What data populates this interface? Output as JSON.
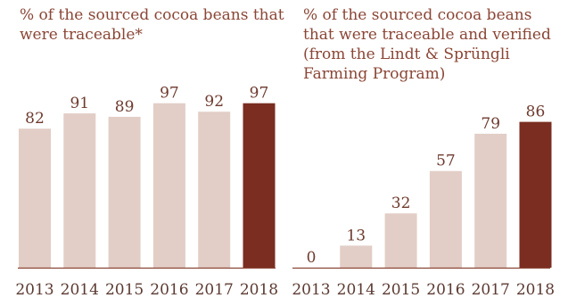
{
  "chart_data": [
    {
      "type": "bar",
      "title": "% of the sourced cocoa beans that were traceable*",
      "categories": [
        "2013",
        "2014",
        "2015",
        "2016",
        "2017",
        "2018"
      ],
      "values": [
        82,
        91,
        89,
        97,
        92,
        97
      ],
      "ylim": [
        0,
        100
      ],
      "grid": false
    },
    {
      "type": "bar",
      "title": "% of the sourced cocoa beans that were traceable and verified (from the Lindt & Sprüngli Farming Program)",
      "categories": [
        "2013",
        "2014",
        "2015",
        "2016",
        "2017",
        "2018"
      ],
      "values": [
        0,
        13,
        32,
        57,
        79,
        86
      ],
      "ylim": [
        0,
        100
      ],
      "grid": false
    }
  ],
  "colors": {
    "bar": "#e2cec6",
    "highlight": "#7a2d20",
    "axis": "#8a4535"
  }
}
